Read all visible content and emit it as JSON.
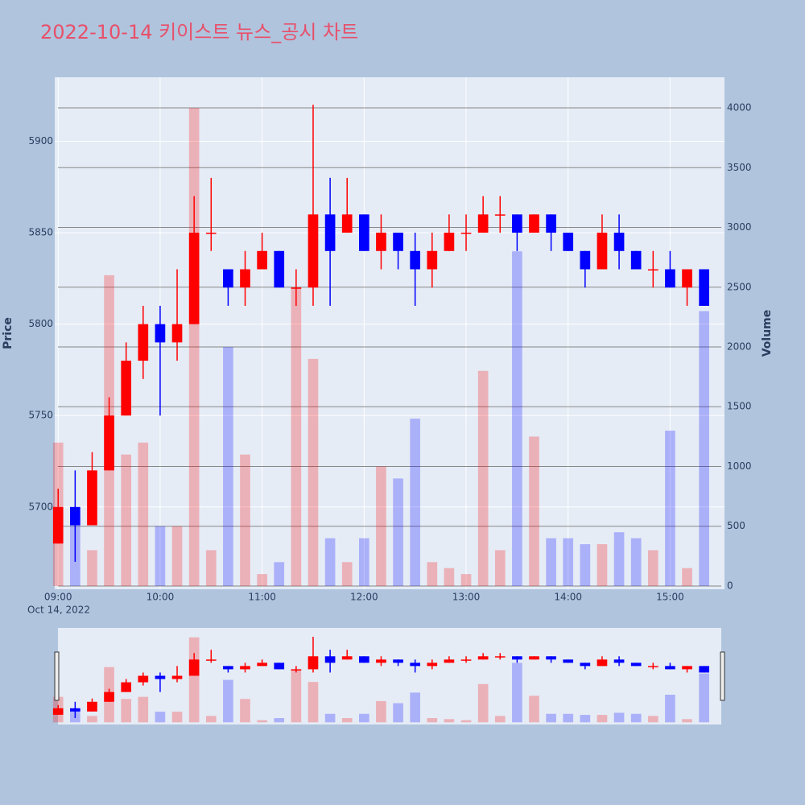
{
  "chart_data": {
    "type": "candlestick",
    "title": "2022-10-14 키이스트 뉴스_공시 차트",
    "y_title": "Price",
    "y2_title": "Volume",
    "x_date_label": "Oct 14, 2022",
    "increasing_color": "#ff0000",
    "decreasing_color": "#0000ff",
    "grid": true,
    "range_slider": true,
    "x": [
      "2022-10-14 09:00",
      "2022-10-14 09:10",
      "2022-10-14 09:20",
      "2022-10-14 09:30",
      "2022-10-14 09:40",
      "2022-10-14 09:50",
      "2022-10-14 10:00",
      "2022-10-14 10:10",
      "2022-10-14 10:20",
      "2022-10-14 10:30",
      "2022-10-14 10:40",
      "2022-10-14 10:50",
      "2022-10-14 11:00",
      "2022-10-14 11:10",
      "2022-10-14 11:20",
      "2022-10-14 11:30",
      "2022-10-14 11:40",
      "2022-10-14 11:50",
      "2022-10-14 12:00",
      "2022-10-14 12:10",
      "2022-10-14 12:20",
      "2022-10-14 12:30",
      "2022-10-14 12:40",
      "2022-10-14 12:50",
      "2022-10-14 13:00",
      "2022-10-14 13:10",
      "2022-10-14 13:20",
      "2022-10-14 13:30",
      "2022-10-14 13:40",
      "2022-10-14 13:50",
      "2022-10-14 14:00",
      "2022-10-14 14:10",
      "2022-10-14 14:20",
      "2022-10-14 14:30",
      "2022-10-14 14:40",
      "2022-10-14 14:50",
      "2022-10-14 15:00",
      "2022-10-14 15:10",
      "2022-10-14 15:20"
    ],
    "open": [
      5680,
      5700,
      5690,
      5720,
      5750,
      5780,
      5800,
      5790,
      5800,
      5850,
      5830,
      5820,
      5830,
      5840,
      5820,
      5820,
      5860,
      5850,
      5860,
      5840,
      5850,
      5840,
      5830,
      5840,
      5850,
      5850,
      5860,
      5860,
      5850,
      5860,
      5850,
      5840,
      5830,
      5850,
      5840,
      5830,
      5830,
      5820,
      5830
    ],
    "high": [
      5710,
      5720,
      5730,
      5760,
      5790,
      5810,
      5810,
      5830,
      5870,
      5880,
      5830,
      5840,
      5850,
      5840,
      5830,
      5920,
      5880,
      5880,
      5860,
      5860,
      5850,
      5850,
      5850,
      5860,
      5860,
      5870,
      5870,
      5860,
      5860,
      5860,
      5850,
      5840,
      5860,
      5860,
      5840,
      5840,
      5840,
      5830,
      5830
    ],
    "low": [
      5680,
      5670,
      5690,
      5720,
      5750,
      5770,
      5750,
      5780,
      5800,
      5840,
      5810,
      5810,
      5830,
      5820,
      5810,
      5810,
      5810,
      5850,
      5840,
      5830,
      5830,
      5810,
      5820,
      5840,
      5840,
      5850,
      5850,
      5840,
      5850,
      5840,
      5840,
      5820,
      5830,
      5830,
      5830,
      5820,
      5820,
      5810,
      5810
    ],
    "close": [
      5700,
      5690,
      5720,
      5750,
      5780,
      5800,
      5790,
      5800,
      5850,
      5850,
      5820,
      5830,
      5840,
      5820,
      5820,
      5860,
      5840,
      5860,
      5840,
      5850,
      5840,
      5830,
      5840,
      5850,
      5850,
      5860,
      5860,
      5850,
      5860,
      5850,
      5840,
      5830,
      5850,
      5840,
      5830,
      5830,
      5820,
      5830,
      5810
    ],
    "volume": [
      1200,
      600,
      300,
      2600,
      1100,
      1200,
      500,
      500,
      4000,
      300,
      2000,
      1100,
      100,
      200,
      2500,
      1900,
      400,
      200,
      400,
      1000,
      900,
      1400,
      200,
      150,
      100,
      1800,
      300,
      2800,
      1250,
      400,
      400,
      350,
      350,
      450,
      400,
      300,
      1300,
      150,
      2300
    ],
    "xlim": [
      "2022-10-14 08:58",
      "2022-10-14 15:32"
    ],
    "xticks": [
      {
        "value": "2022-10-14 09:00",
        "label": "09:00"
      },
      {
        "value": "2022-10-14 10:00",
        "label": "10:00"
      },
      {
        "value": "2022-10-14 11:00",
        "label": "11:00"
      },
      {
        "value": "2022-10-14 12:00",
        "label": "12:00"
      },
      {
        "value": "2022-10-14 13:00",
        "label": "13:00"
      },
      {
        "value": "2022-10-14 14:00",
        "label": "14:00"
      },
      {
        "value": "2022-10-14 15:00",
        "label": "15:00"
      }
    ],
    "ylim": [
      5655,
      5935
    ],
    "yticks": [
      5700,
      5750,
      5800,
      5850,
      5900
    ],
    "y2lim": [
      -27,
      4256
    ],
    "y2ticks": [
      0,
      500,
      1000,
      1500,
      2000,
      2500,
      3000,
      3500,
      4000
    ]
  }
}
